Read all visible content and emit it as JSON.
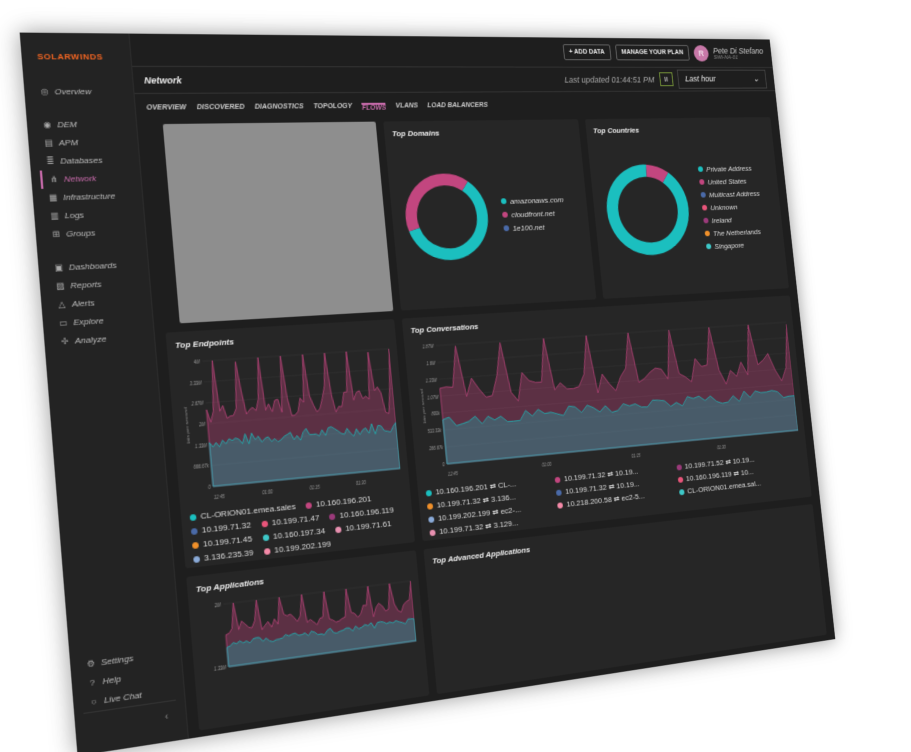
{
  "brand": "SOLARWINDS",
  "sidebar": {
    "items": [
      {
        "label": "Overview",
        "icon": "overview-icon"
      },
      {
        "label": "DEM",
        "icon": "dem-icon"
      },
      {
        "label": "APM",
        "icon": "apm-icon"
      },
      {
        "label": "Databases",
        "icon": "database-icon"
      },
      {
        "label": "Network",
        "icon": "network-icon",
        "active": true
      },
      {
        "label": "Infrastructure",
        "icon": "infrastructure-icon"
      },
      {
        "label": "Logs",
        "icon": "logs-icon"
      },
      {
        "label": "Groups",
        "icon": "groups-icon"
      },
      {
        "label": "Dashboards",
        "icon": "dashboards-icon"
      },
      {
        "label": "Reports",
        "icon": "reports-icon"
      },
      {
        "label": "Alerts",
        "icon": "alerts-icon"
      },
      {
        "label": "Explore",
        "icon": "explore-icon"
      },
      {
        "label": "Analyze",
        "icon": "analyze-icon"
      }
    ],
    "bottom": [
      {
        "label": "Settings",
        "icon": "gear-icon"
      },
      {
        "label": "Help",
        "icon": "help-icon"
      },
      {
        "label": "Live Chat",
        "icon": "chat-icon"
      }
    ],
    "collapse": "‹"
  },
  "topbar": {
    "add_data": "+ ADD DATA",
    "manage_plan": "MANAGE YOUR PLAN",
    "user_initial": "R",
    "user_name": "Pete Di Stefano",
    "user_org": "SWI-NA-01"
  },
  "header": {
    "title": "Network",
    "last_updated": "Last updated 01:44:51 PM",
    "pause": "II",
    "range": "Last hour"
  },
  "tabs": [
    "OVERVIEW",
    "DISCOVERED",
    "DIAGNOSTICS",
    "TOPOLOGY",
    "FLOWS",
    "VLANS",
    "LOAD BALANCERS"
  ],
  "active_tab": "FLOWS",
  "colors": {
    "teal": "#1bbfbf",
    "pink": "#c2467f",
    "accent": "#c86bab",
    "brand": "#f26522"
  },
  "domains": {
    "title": "Top Domains",
    "items": [
      {
        "label": "amazonaws.com",
        "color": "#1bbfbf",
        "share": 60
      },
      {
        "label": "cloudfront.net",
        "color": "#c2467f",
        "share": 40
      },
      {
        "label": "1e100.net",
        "color": "#4a6aa8",
        "share": 0
      }
    ]
  },
  "countries": {
    "title": "Top Countries",
    "items": [
      {
        "label": "Private Address",
        "color": "#1bbfbf",
        "share": 91
      },
      {
        "label": "United States",
        "color": "#c2467f",
        "share": 9
      },
      {
        "label": "Multicast Address",
        "color": "#4a6aa8",
        "share": 0
      },
      {
        "label": "Unknown",
        "color": "#e8557a",
        "share": 0
      },
      {
        "label": "Ireland",
        "color": "#9a3a7a",
        "share": 0
      },
      {
        "label": "The Netherlands",
        "color": "#f0902a",
        "share": 0
      },
      {
        "label": "Singapore",
        "color": "#3ec8c8",
        "share": 0
      }
    ]
  },
  "endpoints": {
    "title": "Top Endpoints",
    "ylabel": "bits per second",
    "yticks": [
      "0",
      "666.67k",
      "1.33M",
      "2M",
      "2.67M",
      "3.33M",
      "4M"
    ],
    "xticks": [
      "12:45",
      "01:00",
      "01:15",
      "01:30"
    ],
    "legend": [
      {
        "label": "CL-ORION01.emea.sales",
        "color": "#1bbfbf"
      },
      {
        "label": "10.160.196.201",
        "color": "#c2467f"
      },
      {
        "label": "10.199.71.32",
        "color": "#4a6aa8"
      },
      {
        "label": "10.199.71.47",
        "color": "#e8557a"
      },
      {
        "label": "10.160.196.119",
        "color": "#9a3a7a"
      },
      {
        "label": "10.199.71.45",
        "color": "#f0902a"
      },
      {
        "label": "10.160.197.34",
        "color": "#3ec8c8"
      },
      {
        "label": "10.199.71.61",
        "color": "#e890b0"
      },
      {
        "label": "3.136.235.39",
        "color": "#8aaad8"
      },
      {
        "label": "10.199.202.199",
        "color": "#f58aa8"
      }
    ]
  },
  "conversations": {
    "title": "Top Conversations",
    "ylabel": "bits per second",
    "yticks": [
      "0",
      "266.67k",
      "533.33k",
      "800k",
      "1.07M",
      "1.33M",
      "1.6M",
      "1.87M"
    ],
    "xticks": [
      "12:45",
      "01:00",
      "01:15",
      "01:30"
    ],
    "legend": [
      {
        "label": "10.160.196.201 ⇄ CL-...",
        "color": "#1bbfbf"
      },
      {
        "label": "10.199.71.32 ⇄ 10.19...",
        "color": "#c2467f"
      },
      {
        "label": "10.199.71.52 ⇄ 10.19...",
        "color": "#9a3a7a"
      },
      {
        "label": "10.199.71.32 ⇄ 3.136...",
        "color": "#f0902a"
      },
      {
        "label": "10.199.71.32 ⇄ 10.19...",
        "color": "#4a6aa8"
      },
      {
        "label": "10.160.196.119 ⇄ 10...",
        "color": "#e8557a"
      },
      {
        "label": "10.199.202.199 ⇄ ec2-...",
        "color": "#8aaad8"
      },
      {
        "label": "10.218.200.58 ⇄ ec2-5...",
        "color": "#f58aa8"
      },
      {
        "label": "CL-ORION01.emea.sal...",
        "color": "#3ec8c8"
      },
      {
        "label": "10.199.71.32 ⇄ 3.129...",
        "color": "#e890b0"
      }
    ]
  },
  "applications": {
    "title": "Top Applications",
    "yticks": [
      "1.33M",
      "2M"
    ]
  },
  "advanced": {
    "title": "Top Advanced Applications"
  }
}
